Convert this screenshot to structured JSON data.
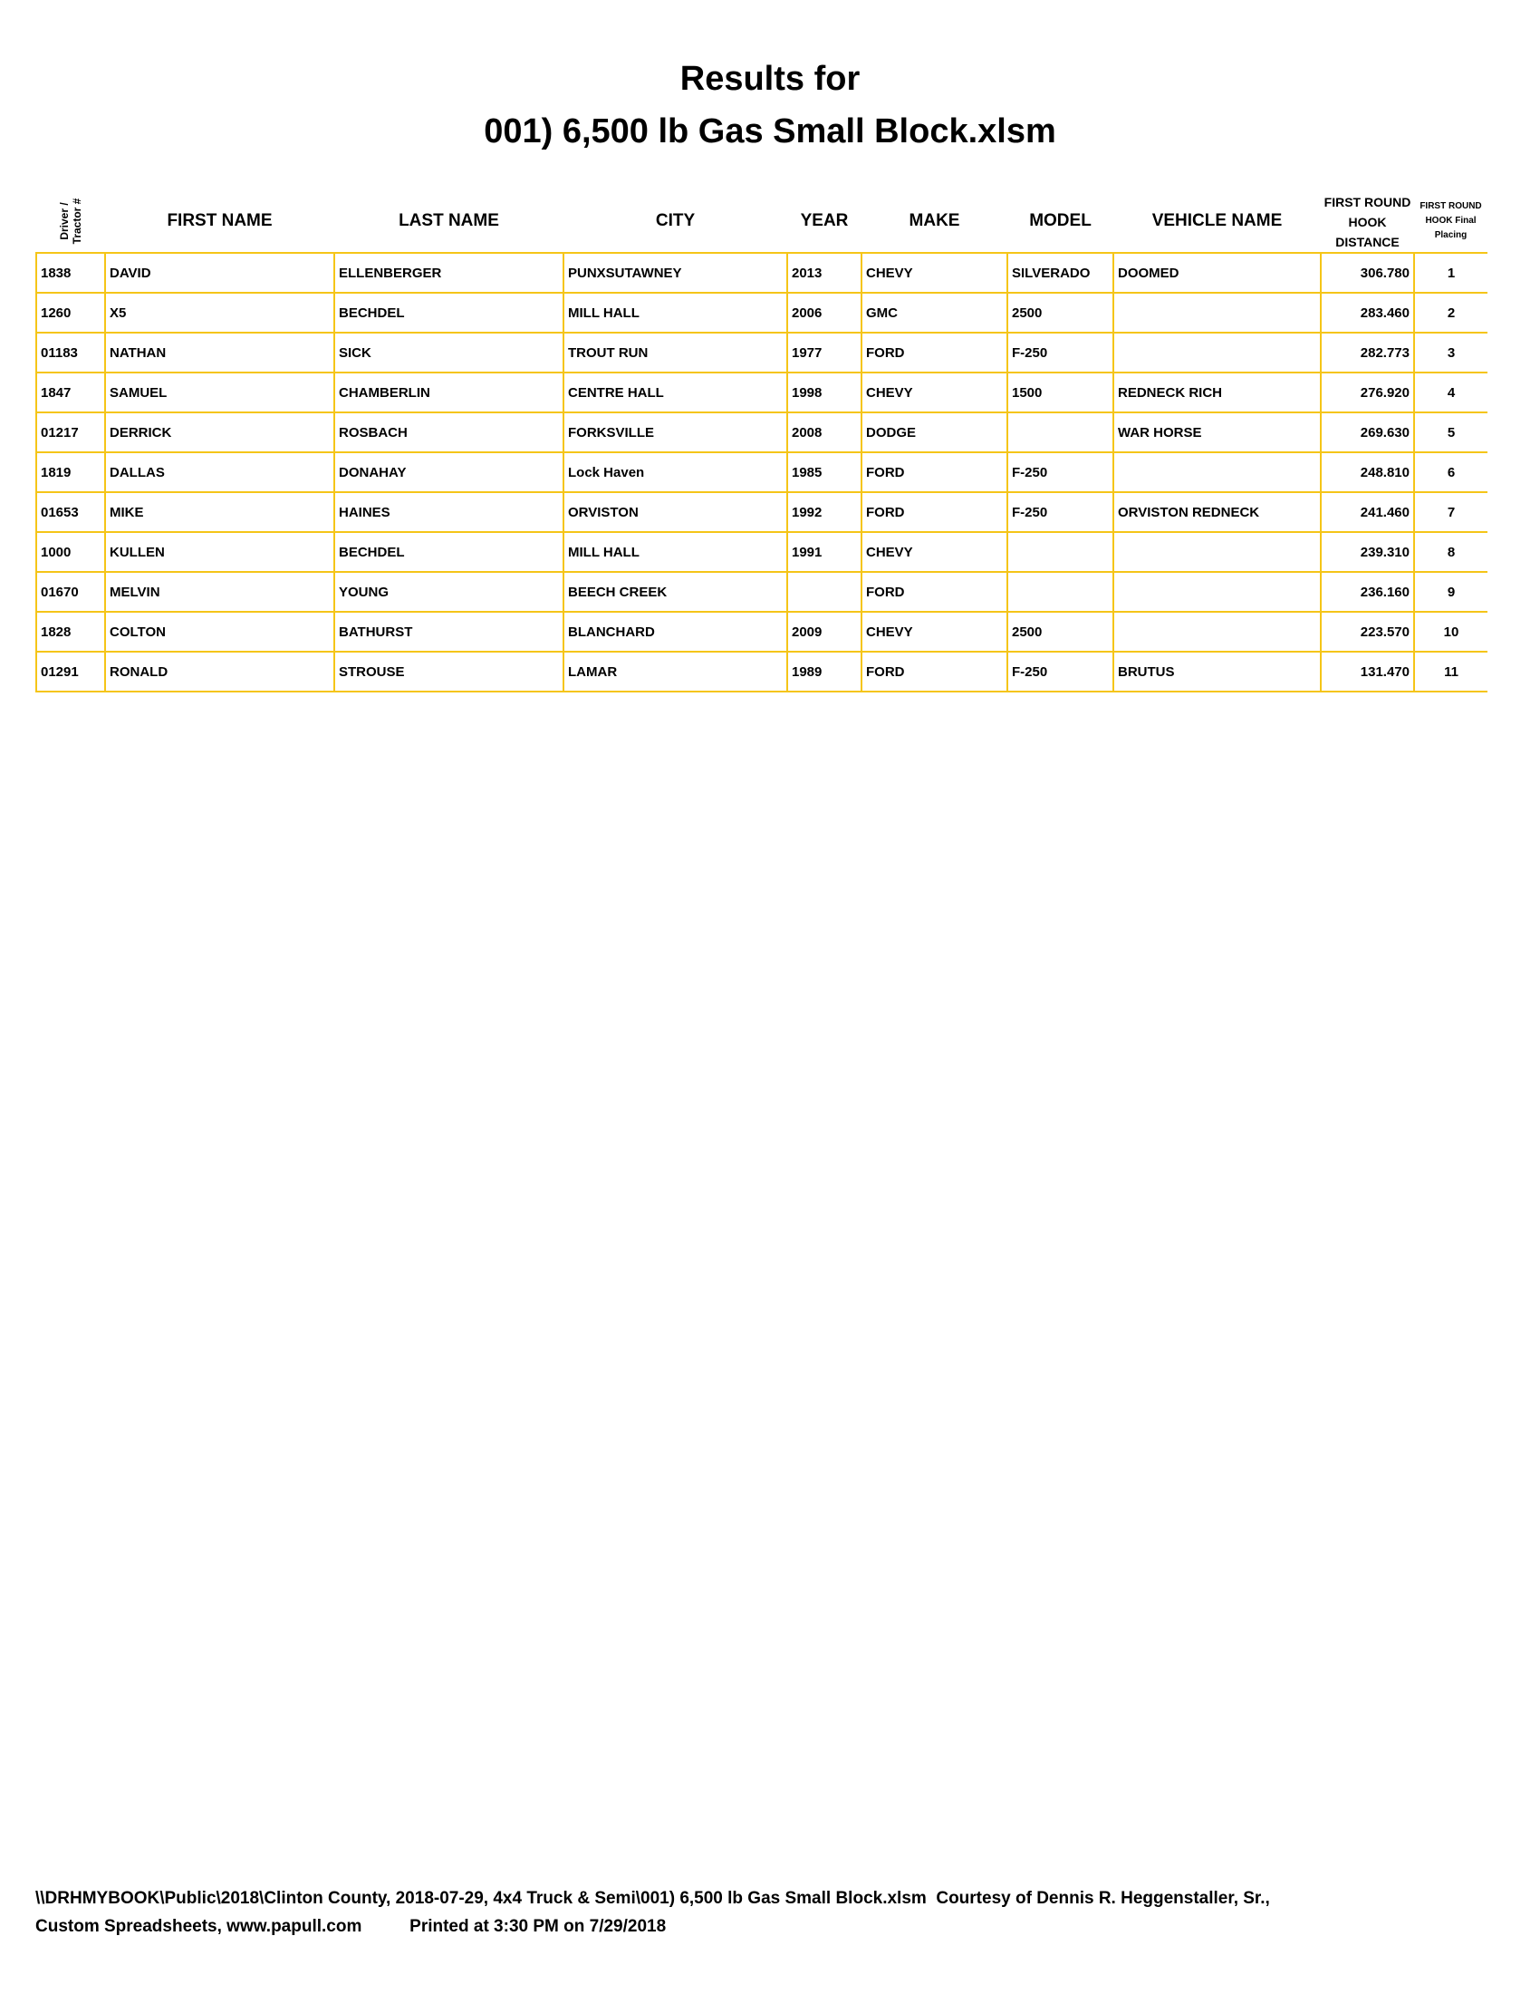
{
  "title_line1": "Results for",
  "title_line2": "001) 6,500 lb Gas Small Block.xlsm",
  "columns": {
    "driver": "Driver /\nTractor #",
    "first_name": "FIRST NAME",
    "last_name": "LAST NAME",
    "city": "CITY",
    "year": "YEAR",
    "make": "MAKE",
    "model": "MODEL",
    "vehicle_name": "VEHICLE NAME",
    "distance": "FIRST ROUND HOOK DISTANCE",
    "placing": "FIRST ROUND HOOK Final Placing"
  },
  "rows": [
    [
      "1838",
      "DAVID",
      "ELLENBERGER",
      "PUNXSUTAWNEY",
      "2013",
      "CHEVY",
      "SILVERADO",
      "DOOMED",
      "306.780",
      "1"
    ],
    [
      "1260",
      "X5",
      "BECHDEL",
      "MILL HALL",
      "2006",
      "GMC",
      "2500",
      "",
      "283.460",
      "2"
    ],
    [
      "01183",
      "NATHAN",
      "SICK",
      "TROUT RUN",
      "1977",
      "FORD",
      "F-250",
      "",
      "282.773",
      "3"
    ],
    [
      "1847",
      "SAMUEL",
      "CHAMBERLIN",
      "CENTRE HALL",
      "1998",
      "CHEVY",
      "1500",
      "REDNECK RICH",
      "276.920",
      "4"
    ],
    [
      "01217",
      "DERRICK",
      "ROSBACH",
      "FORKSVILLE",
      "2008",
      "DODGE",
      "",
      "WAR HORSE",
      "269.630",
      "5"
    ],
    [
      "1819",
      "DALLAS",
      "DONAHAY",
      "Lock Haven",
      "1985",
      "FORD",
      "F-250",
      "",
      "248.810",
      "6"
    ],
    [
      "01653",
      "MIKE",
      "HAINES",
      "ORVISTON",
      "1992",
      "FORD",
      "F-250",
      "ORVISTON REDNECK",
      "241.460",
      "7"
    ],
    [
      "1000",
      "KULLEN",
      "BECHDEL",
      "MILL HALL",
      "1991",
      "CHEVY",
      "",
      "",
      "239.310",
      "8"
    ],
    [
      "01670",
      "MELVIN",
      "YOUNG",
      "BEECH CREEK",
      "",
      "FORD",
      "",
      "",
      "236.160",
      "9"
    ],
    [
      "1828",
      "COLTON",
      "BATHURST",
      "BLANCHARD",
      "2009",
      "CHEVY",
      "2500",
      "",
      "223.570",
      "10"
    ],
    [
      "01291",
      "RONALD",
      "STROUSE",
      "LAMAR",
      "1989",
      "FORD",
      "F-250",
      "BRUTUS",
      "131.470",
      "11"
    ]
  ],
  "footer_line1": "\\\\DRHMYBOOK\\Public\\2018\\Clinton County, 2018-07-29, 4x4 Truck & Semi\\001) 6,500 lb Gas Small Block.xlsm  Courtesy of Dennis R. Heggenstaller, Sr.,",
  "footer_line2": "Custom Spreadsheets, www.papull.com          Printed at 3:30 PM on 7/29/2018",
  "colors": {
    "grid": "#f5c518",
    "text": "#000000"
  }
}
